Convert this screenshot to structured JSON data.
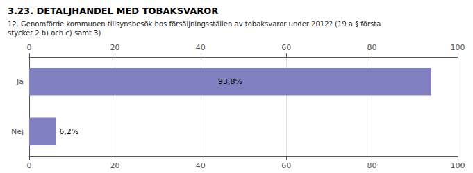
{
  "chart_data": {
    "type": "bar",
    "orientation": "horizontal",
    "title": "3.23. DETALJHANDEL MED TOBAKSVAROR",
    "subtitle": "12. Genomförde kommunen tillsynsbesök hos försäljningsställen av tobaksvaror under 2012? (19 a § första\nstycket 2 b) och c) samt 3)",
    "categories": [
      "Ja",
      "Nej"
    ],
    "values": [
      93.8,
      6.2
    ],
    "value_labels": [
      "93,8%",
      "6,2%"
    ],
    "data_labels": true,
    "color": "#8080c0",
    "xlim": [
      0,
      100
    ],
    "xticks": [
      0,
      20,
      40,
      60,
      80,
      100
    ],
    "grid": true
  }
}
